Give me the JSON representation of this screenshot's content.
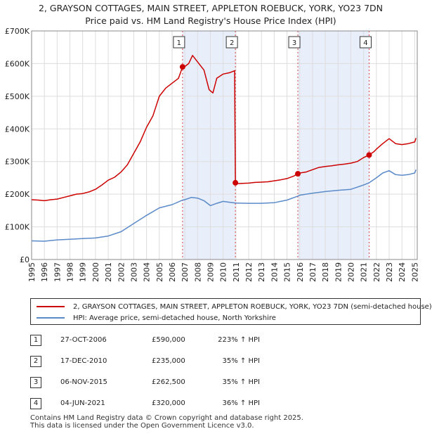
{
  "chart_data": {
    "type": "line",
    "title": "2, GRAYSON COTTAGES, MAIN STREET, APPLETON ROEBUCK, YORK, YO23 7DN",
    "subtitle": "Price paid vs. HM Land Registry's House Price Index (HPI)",
    "xlim": [
      1995,
      2025.2
    ],
    "ylim": [
      0,
      700000
    ],
    "x_ticks": [
      1995,
      1996,
      1997,
      1998,
      1999,
      2000,
      2001,
      2002,
      2003,
      2004,
      2005,
      2006,
      2007,
      2008,
      2009,
      2010,
      2011,
      2012,
      2013,
      2014,
      2015,
      2016,
      2017,
      2018,
      2019,
      2020,
      2021,
      2022,
      2023,
      2024,
      2025
    ],
    "y_ticks": [
      0,
      100000,
      200000,
      300000,
      400000,
      500000,
      600000,
      700000
    ],
    "y_tick_labels": [
      "£0",
      "£100K",
      "£200K",
      "£300K",
      "£400K",
      "£500K",
      "£600K",
      "£700K"
    ],
    "series": [
      {
        "name": "2, GRAYSON COTTAGES, MAIN STREET, APPLETON ROEBUCK, YORK, YO23 7DN (semi-detached house)",
        "color": "#cc0000",
        "x": [
          1995,
          1995.5,
          1996,
          1996.5,
          1997,
          1997.5,
          1998,
          1998.5,
          1999,
          1999.5,
          2000,
          2000.5,
          2001,
          2001.5,
          2002,
          2002.5,
          2003,
          2003.5,
          2004,
          2004.5,
          2005,
          2005.5,
          2006,
          2006.5,
          2006.82,
          2007,
          2007.3,
          2007.6,
          2008,
          2008.5,
          2008.9,
          2009.2,
          2009.5,
          2010,
          2010.5,
          2010.9,
          2010.96,
          2011,
          2011.5,
          2012,
          2012.5,
          2013,
          2013.5,
          2014,
          2014.5,
          2015,
          2015.5,
          2015.85,
          2016,
          2016.5,
          2017,
          2017.5,
          2018,
          2018.5,
          2019,
          2019.5,
          2020,
          2020.5,
          2021,
          2021.43,
          2021.8,
          2022,
          2022.5,
          2023,
          2023.5,
          2024,
          2024.5,
          2025,
          2025.1
        ],
        "values": [
          183000,
          182000,
          180000,
          183000,
          185000,
          190000,
          195000,
          200000,
          202000,
          207000,
          215000,
          228000,
          243000,
          252000,
          268000,
          290000,
          325000,
          360000,
          405000,
          440000,
          500000,
          525000,
          540000,
          555000,
          590000,
          591000,
          600000,
          625000,
          605000,
          580000,
          520000,
          510000,
          555000,
          568000,
          572000,
          578000,
          235000,
          232000,
          233000,
          234000,
          236000,
          237000,
          238000,
          241000,
          244000,
          248000,
          255000,
          262500,
          265000,
          268000,
          275000,
          282000,
          285000,
          287000,
          290000,
          292000,
          295000,
          300000,
          312000,
          320000,
          330000,
          338000,
          355000,
          370000,
          355000,
          352000,
          355000,
          360000,
          372000
        ]
      },
      {
        "name": "HPI: Average price, semi-detached house, North Yorkshire",
        "color": "#5b8ac9",
        "x": [
          1995,
          1996,
          1997,
          1998,
          1999,
          2000,
          2001,
          2002,
          2003,
          2004,
          2005,
          2006,
          2006.82,
          2007,
          2007.5,
          2008,
          2008.5,
          2009,
          2009.5,
          2010,
          2010.96,
          2011,
          2012,
          2013,
          2014,
          2015,
          2015.85,
          2016,
          2017,
          2018,
          2019,
          2020,
          2021,
          2021.43,
          2022,
          2022.5,
          2023,
          2023.5,
          2024,
          2024.5,
          2025,
          2025.1
        ],
        "values": [
          57000,
          56000,
          60000,
          62000,
          64000,
          66000,
          72000,
          85000,
          110000,
          135000,
          158000,
          168000,
          182000,
          183000,
          190000,
          188000,
          180000,
          165000,
          172000,
          178000,
          173000,
          173000,
          172000,
          172000,
          174000,
          182000,
          194000,
          197000,
          203000,
          208000,
          212000,
          215000,
          228000,
          235000,
          250000,
          265000,
          272000,
          260000,
          258000,
          260000,
          265000,
          275000
        ]
      }
    ],
    "sales": [
      {
        "marker": "1",
        "x": 2006.82,
        "value": 590000,
        "date": "27-OCT-2006",
        "price": "£590,000",
        "hpi": "223% ↑ HPI"
      },
      {
        "marker": "2",
        "x": 2010.96,
        "value": 235000,
        "date": "17-DEC-2010",
        "price": "£235,000",
        "hpi": "35% ↑ HPI"
      },
      {
        "marker": "3",
        "x": 2015.85,
        "value": 262500,
        "date": "06-NOV-2015",
        "price": "£262,500",
        "hpi": "35% ↑ HPI"
      },
      {
        "marker": "4",
        "x": 2021.43,
        "value": 320000,
        "date": "04-JUN-2021",
        "price": "£320,000",
        "hpi": "36% ↑ HPI"
      }
    ],
    "shaded_ranges": [
      [
        2006.82,
        2010.96
      ],
      [
        2015.85,
        2021.43
      ]
    ],
    "shade_color": "#e8eefa",
    "grid": true
  },
  "legend": {
    "series1_label": "2, GRAYSON COTTAGES, MAIN STREET, APPLETON ROEBUCK, YORK, YO23 7DN (semi-detached house)",
    "series2_label": "HPI: Average price, semi-detached house, North Yorkshire"
  },
  "footer": {
    "line1": "Contains HM Land Registry data © Crown copyright and database right 2025.",
    "line2": "This data is licensed under the Open Government Licence v3.0."
  }
}
